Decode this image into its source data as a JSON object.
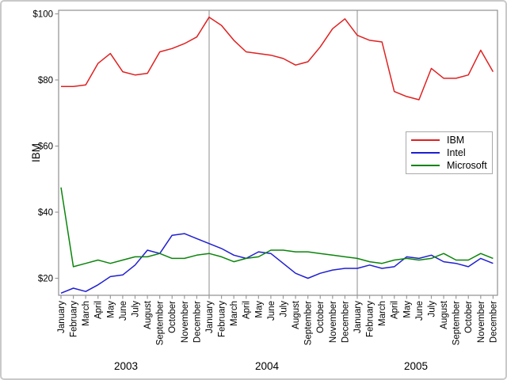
{
  "chart_data": {
    "type": "line",
    "title": "",
    "ylabel": "IBM",
    "xlabel": "",
    "months": [
      "January",
      "February",
      "March",
      "April",
      "May",
      "June",
      "July",
      "August",
      "September",
      "October",
      "November",
      "December"
    ],
    "years": [
      "2003",
      "2004",
      "2005"
    ],
    "y_ticks": [
      {
        "label": "$100",
        "value": 100
      },
      {
        "label": "$80",
        "value": 80
      },
      {
        "label": "$60",
        "value": 60
      },
      {
        "label": "$40",
        "value": 40
      },
      {
        "label": "$20",
        "value": 20
      }
    ],
    "ylim": [
      15,
      101
    ],
    "grid": false,
    "reference_line_indices": [
      12,
      24
    ],
    "legend": {
      "position": "inside-right",
      "entries": [
        "IBM",
        "Intel",
        "Microsoft"
      ]
    },
    "series": [
      {
        "name": "IBM",
        "color": "#e02020",
        "values": [
          78,
          78,
          78.5,
          85,
          88,
          82.5,
          81.5,
          82,
          88.5,
          89.5,
          91,
          93,
          99,
          96.5,
          92,
          88.5,
          88,
          87.5,
          86.5,
          84.5,
          85.5,
          90,
          95.5,
          98.5,
          93.5,
          92,
          91.5,
          76.5,
          75,
          74,
          83.5,
          80.5,
          80.5,
          81.5,
          89,
          82.5
        ]
      },
      {
        "name": "Intel",
        "color": "#1f1fd1",
        "values": [
          15.5,
          17,
          16,
          18,
          20.5,
          21,
          24,
          28.5,
          27.5,
          33,
          33.5,
          32,
          30.5,
          29,
          27,
          26,
          28,
          27.5,
          24.5,
          21.5,
          20,
          21.5,
          22.5,
          23,
          23,
          24,
          23,
          23.5,
          26.5,
          26,
          27,
          25,
          24.5,
          23.5,
          26,
          24.5
        ]
      },
      {
        "name": "Microsoft",
        "color": "#0b840b",
        "values": [
          47.5,
          23.5,
          24.5,
          25.5,
          24.5,
          25.5,
          26.5,
          26.5,
          27.5,
          26,
          26,
          27,
          27.5,
          26.5,
          25,
          26,
          26.5,
          28.5,
          28.5,
          28,
          28,
          27.5,
          27,
          26.5,
          26,
          25,
          24.5,
          25.5,
          26,
          25.5,
          26,
          27.5,
          25.5,
          25.5,
          27.5,
          26
        ]
      }
    ],
    "colors": {
      "background": "#ffffff",
      "frame": "#8f8f8f",
      "reference_line": "#b3b3b3",
      "tick": "#9a9a9a",
      "text": "#000000",
      "figure_border": "#c9c9c9",
      "legend_border": "#a9a9a9"
    }
  }
}
